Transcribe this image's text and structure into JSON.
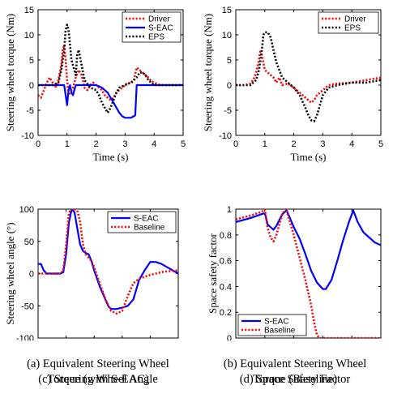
{
  "chart_data": [
    {
      "type": "line",
      "caption_lines": [
        "(a) Equivalent Steering Wheel",
        "Torque (with S-EAC)"
      ],
      "xlabel": "Time (s)",
      "ylabel": "Steering wheel torque (Nm)",
      "xlim": [
        0,
        5
      ],
      "ylim": [
        -10,
        15
      ],
      "xticks": [
        "0",
        "1",
        "2",
        "3",
        "4",
        "5"
      ],
      "yticks": [
        "-10",
        "-5",
        "0",
        "5",
        "10",
        "15"
      ],
      "legend_position": "top-right",
      "series": [
        {
          "name": "Driver",
          "color": "#ff0000",
          "style": "dotted",
          "x": [
            0,
            0.1,
            0.2,
            0.3,
            0.4,
            0.5,
            0.6,
            0.7,
            0.8,
            0.85,
            0.9,
            0.95,
            1.0,
            1.05,
            1.1,
            1.2,
            1.3,
            1.4,
            1.5,
            1.6,
            1.7,
            1.8,
            1.9,
            2.0,
            2.1,
            2.2,
            2.3,
            2.4,
            2.5,
            2.6,
            2.7,
            2.8,
            2.9,
            3.0,
            3.1,
            3.2,
            3.3,
            3.4,
            3.5,
            3.6,
            3.7,
            3.8,
            3.9,
            4.0,
            4.2,
            4.4,
            4.6,
            4.8,
            5.0
          ],
          "y": [
            -2,
            -2.5,
            -1,
            0.5,
            1.5,
            0.5,
            -0.5,
            1,
            4,
            7,
            8,
            5,
            1,
            -2,
            -1.5,
            -0.5,
            1.5,
            3,
            2,
            -0.5,
            -1,
            0,
            0.5,
            0,
            -0.5,
            -1,
            -2,
            -2.5,
            -3,
            -2.5,
            -1.5,
            -1,
            -0.5,
            0,
            0.5,
            0.3,
            1,
            3.5,
            3,
            2.5,
            2,
            1.5,
            0.8,
            0.5,
            0,
            0,
            0,
            0,
            0
          ]
        },
        {
          "name": "S-EAC",
          "color": "#0000ff",
          "style": "solid",
          "x": [
            0,
            0.8,
            0.9,
            0.95,
            1.0,
            1.05,
            1.1,
            1.15,
            1.2,
            1.3,
            1.4,
            1.5,
            2.0,
            2.2,
            2.4,
            2.5,
            2.6,
            2.7,
            2.8,
            2.9,
            3.0,
            3.1,
            3.2,
            3.3,
            3.35,
            3.4,
            3.5,
            4.0,
            5.0
          ],
          "y": [
            0,
            0,
            0,
            -2,
            -4,
            -1,
            0,
            -1.5,
            -2,
            0,
            0,
            0,
            0,
            -0.5,
            -1.5,
            -2.5,
            -3.5,
            -4.5,
            -5.5,
            -6.2,
            -6.5,
            -6.5,
            -6.5,
            -6.2,
            -6,
            0,
            0,
            0,
            0
          ]
        },
        {
          "name": "EPS",
          "color": "#000000",
          "style": "dotted",
          "x": [
            0,
            0.5,
            0.7,
            0.8,
            0.9,
            0.95,
            1.0,
            1.05,
            1.1,
            1.15,
            1.2,
            1.3,
            1.35,
            1.4,
            1.5,
            1.6,
            1.8,
            2.0,
            2.1,
            2.2,
            2.3,
            2.4,
            2.5,
            2.6,
            2.7,
            2.8,
            3.0,
            3.2,
            3.4,
            3.5,
            3.6,
            3.7,
            3.8,
            4.0,
            4.2,
            4.4,
            5.0
          ],
          "y": [
            0,
            0,
            0.5,
            3,
            7,
            11,
            12,
            11,
            8,
            5,
            4,
            2,
            6,
            7,
            4,
            1,
            -0.5,
            -1,
            -2,
            -3.5,
            -4.5,
            -5.5,
            -4.5,
            -3,
            -1.5,
            -0.5,
            0,
            0.5,
            1.5,
            2.5,
            2.5,
            2,
            1,
            0,
            0,
            0,
            0
          ]
        }
      ]
    },
    {
      "type": "line",
      "caption_lines": [
        "(b) Equivalent Steering Wheel",
        "Torque (Baseline)"
      ],
      "xlabel": "Time (s)",
      "ylabel": "Steering wheel torque (Nm)",
      "xlim": [
        0,
        5
      ],
      "ylim": [
        -10,
        15
      ],
      "xticks": [
        "0",
        "1",
        "2",
        "3",
        "4",
        "5"
      ],
      "yticks": [
        "-10",
        "-5",
        "0",
        "5",
        "10",
        "15"
      ],
      "legend_position": "top-right",
      "series": [
        {
          "name": "Driver",
          "color": "#ff0000",
          "style": "dotted",
          "x": [
            0,
            0.3,
            0.5,
            0.6,
            0.7,
            0.8,
            0.85,
            0.9,
            1.0,
            1.1,
            1.2,
            1.3,
            1.4,
            1.5,
            1.6,
            1.8,
            2.0,
            2.2,
            2.4,
            2.6,
            2.7,
            2.8,
            3.0,
            3.2,
            3.5,
            4.0,
            4.5,
            5.0
          ],
          "y": [
            0,
            0,
            0.3,
            1,
            2.5,
            5,
            7,
            6,
            3,
            2.5,
            2,
            1.5,
            0.5,
            1.5,
            0,
            0.3,
            -0.5,
            -1.5,
            -2.5,
            -3.5,
            -3,
            -2,
            -1,
            0,
            0.3,
            0.5,
            1,
            1.5
          ]
        },
        {
          "name": "EPS",
          "color": "#000000",
          "style": "dotted",
          "x": [
            0,
            0.5,
            0.6,
            0.7,
            0.8,
            0.9,
            0.95,
            1.0,
            1.1,
            1.2,
            1.3,
            1.4,
            1.5,
            1.6,
            1.8,
            2.0,
            2.2,
            2.4,
            2.5,
            2.6,
            2.7,
            2.8,
            2.9,
            3.0,
            3.2,
            3.5,
            4.0,
            4.5,
            5.0
          ],
          "y": [
            0,
            0,
            0.5,
            1,
            3,
            7,
            10,
            10.5,
            10.5,
            9.5,
            7,
            4.5,
            3,
            1.5,
            0.5,
            -0.5,
            -2,
            -4.5,
            -6,
            -7,
            -7.2,
            -6,
            -4,
            -2,
            -0.5,
            0,
            0.5,
            0.5,
            1
          ]
        }
      ]
    },
    {
      "type": "line",
      "caption_lines": [
        "(c) Steering Wheel Angle"
      ],
      "xlabel": "Time (s)",
      "ylabel": "Steering wheel angle (°)",
      "xlim": [
        0,
        5
      ],
      "ylim": [
        -100,
        100
      ],
      "xticks": [
        "0",
        "1",
        "2",
        "3",
        "4",
        "5"
      ],
      "yticks": [
        "-100",
        "-50",
        "0",
        "50",
        "100"
      ],
      "legend_position": "top-right",
      "series": [
        {
          "name": "S-EAC",
          "color": "#0000ff",
          "style": "solid",
          "x": [
            0,
            0.1,
            0.2,
            0.3,
            0.5,
            0.7,
            0.8,
            0.9,
            1.0,
            1.1,
            1.2,
            1.3,
            1.4,
            1.5,
            1.6,
            1.7,
            1.8,
            1.9,
            2.0,
            2.2,
            2.4,
            2.5,
            2.6,
            2.8,
            3.0,
            3.2,
            3.4,
            3.5,
            3.6,
            3.8,
            4.0,
            4.2,
            4.4,
            4.6,
            4.8,
            5.0
          ],
          "y": [
            15,
            15,
            5,
            0,
            0,
            0,
            0,
            2,
            30,
            80,
            100,
            95,
            70,
            45,
            35,
            32,
            30,
            20,
            5,
            -20,
            -40,
            -50,
            -55,
            -55,
            -53,
            -50,
            -40,
            -25,
            -10,
            5,
            18,
            18,
            15,
            10,
            5,
            0
          ]
        },
        {
          "name": "Baseline",
          "color": "#ff0000",
          "style": "dotted",
          "x": [
            0,
            0.1,
            0.2,
            0.3,
            0.5,
            0.7,
            0.8,
            0.9,
            1.0,
            1.1,
            1.2,
            1.3,
            1.4,
            1.5,
            1.6,
            1.7,
            1.8,
            1.9,
            2.0,
            2.2,
            2.4,
            2.6,
            2.8,
            3.0,
            3.2,
            3.4,
            3.6,
            3.8,
            4.0,
            4.2,
            4.5,
            5.0
          ],
          "y": [
            0,
            0,
            0,
            0,
            0,
            0,
            0,
            5,
            45,
            95,
            100,
            100,
            98,
            80,
            45,
            30,
            25,
            20,
            10,
            -15,
            -40,
            -58,
            -62,
            -58,
            -35,
            -15,
            -8,
            -5,
            -2,
            0,
            3,
            5
          ]
        }
      ]
    },
    {
      "type": "line",
      "caption_lines": [
        "(d) Space Safety Factor"
      ],
      "xlabel": "Time (s)",
      "ylabel": "Space safety factor",
      "xlim": [
        0,
        5
      ],
      "ylim": [
        0,
        1
      ],
      "xticks": [
        "0",
        "1",
        "2",
        "3",
        "4",
        "5"
      ],
      "yticks": [
        "0",
        "0.2",
        "0.4",
        "0.6",
        "0.8",
        "1"
      ],
      "legend_position": "bottom-left",
      "series": [
        {
          "name": "S-EAC",
          "color": "#0000ff",
          "style": "solid",
          "x": [
            0,
            0.5,
            1.0,
            1.1,
            1.3,
            1.4,
            1.6,
            1.75,
            1.85,
            2.0,
            2.2,
            2.4,
            2.6,
            2.8,
            3.0,
            3.1,
            3.3,
            3.5,
            3.7,
            3.9,
            4.05,
            4.2,
            4.4,
            4.6,
            4.8,
            5.0
          ],
          "y": [
            0.9,
            0.93,
            0.97,
            0.88,
            0.84,
            0.87,
            0.96,
            0.99,
            0.94,
            0.86,
            0.77,
            0.65,
            0.52,
            0.43,
            0.38,
            0.38,
            0.45,
            0.6,
            0.76,
            0.9,
            0.99,
            0.9,
            0.82,
            0.78,
            0.74,
            0.72
          ]
        },
        {
          "name": "Baseline",
          "color": "#ff0000",
          "style": "dotted",
          "x": [
            0,
            0.5,
            0.9,
            1.0,
            1.1,
            1.2,
            1.3,
            1.4,
            1.5,
            1.6,
            1.7,
            1.75,
            1.8,
            2.0,
            2.2,
            2.4,
            2.5,
            2.6,
            2.7,
            2.8,
            2.9,
            3.0,
            4.0,
            5.0
          ],
          "y": [
            0.92,
            0.95,
            0.98,
            1.0,
            0.85,
            0.78,
            0.75,
            0.8,
            0.88,
            0.96,
            1.0,
            1.0,
            0.95,
            0.8,
            0.62,
            0.45,
            0.35,
            0.25,
            0.12,
            0.02,
            0,
            0,
            0,
            0
          ]
        }
      ]
    }
  ]
}
